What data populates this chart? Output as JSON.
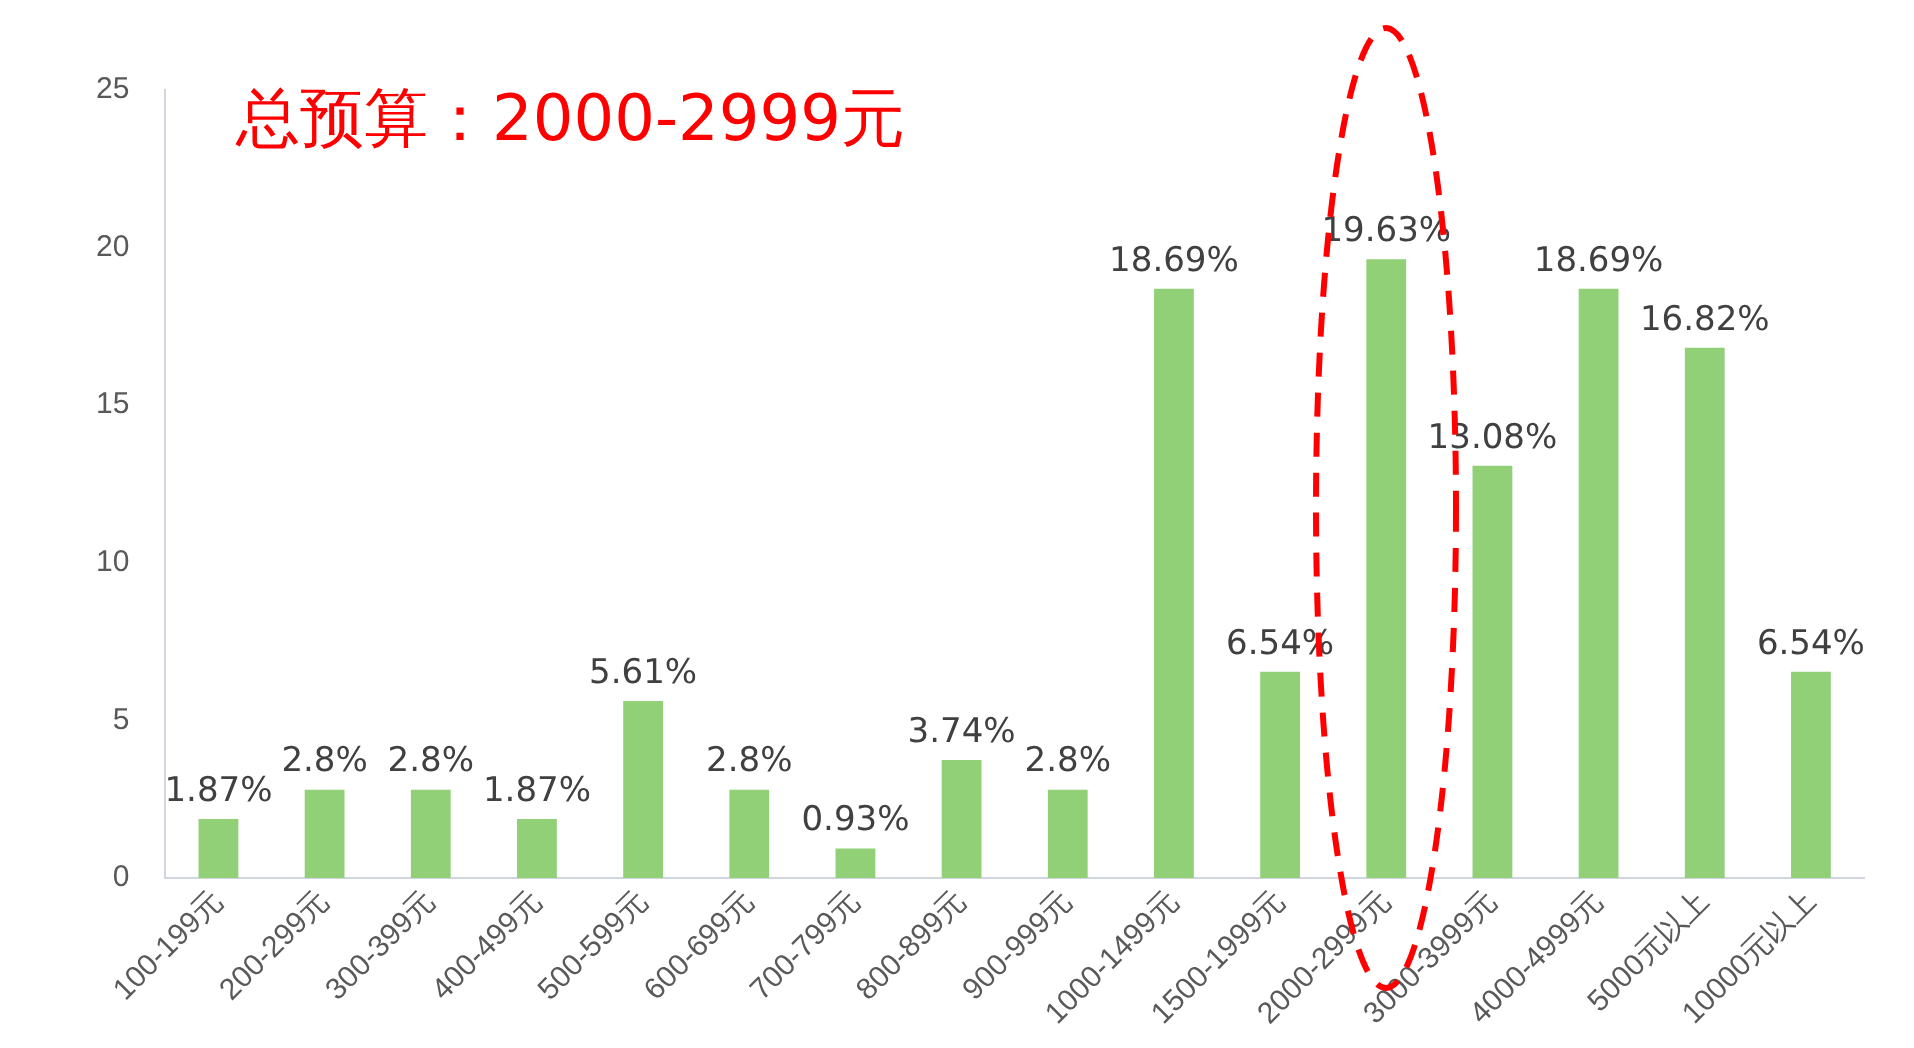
{
  "chart_data": {
    "type": "bar",
    "annotations": [
      "总预算：2000-2999元"
    ],
    "categories": [
      "100-199元",
      "200-299元",
      "300-399元",
      "400-499元",
      "500-599元",
      "600-699元",
      "700-799元",
      "800-899元",
      "900-999元",
      "1000-1499元",
      "1500-1999元",
      "2000-2999元",
      "3000-3999元",
      "4000-4999元",
      "5000元以上",
      "10000元以上"
    ],
    "values": [
      1.87,
      2.8,
      2.8,
      1.87,
      5.61,
      2.8,
      0.93,
      3.74,
      2.8,
      18.69,
      6.54,
      19.63,
      13.08,
      18.69,
      16.82,
      6.54
    ],
    "value_labels": [
      "1.87%",
      "2.8%",
      "2.8%",
      "1.87%",
      "5.61%",
      "2.8%",
      "0.93%",
      "3.74%",
      "2.8%",
      "18.69%",
      "6.54%",
      "19.63%",
      "13.08%",
      "18.69%",
      "16.82%",
      "6.54%"
    ],
    "color": "#92d078",
    "ylim": [
      0,
      25
    ],
    "yticks": [
      0,
      5,
      10,
      15,
      20,
      25
    ],
    "grid": false,
    "legend": false
  }
}
